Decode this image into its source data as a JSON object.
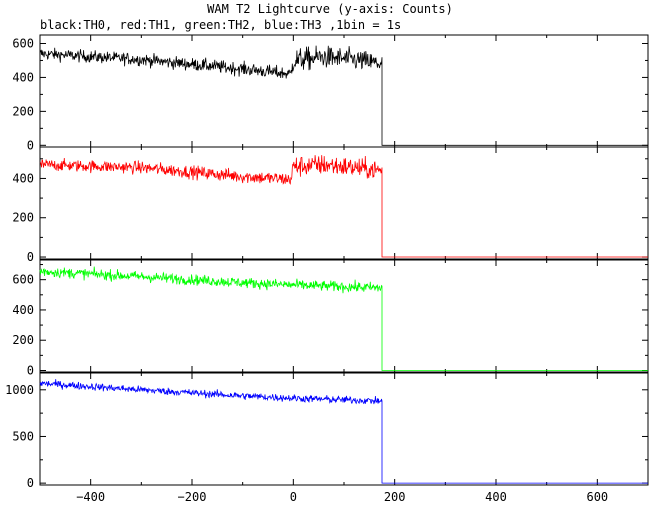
{
  "chart_data": {
    "type": "line",
    "title": "WAM T2 Lightcurve (y-axis: Counts)",
    "subtitle": "black:TH0, red:TH1, green:TH2, blue:TH3 ,1bin = 1s",
    "xlim": [
      -500,
      700
    ],
    "x_ticks": [
      -400,
      -200,
      0,
      200,
      400,
      600
    ],
    "x_tick_labels": [
      "−400",
      "−200",
      "0",
      "200",
      "400",
      "600"
    ],
    "x_step": 1,
    "data_end_x": 175,
    "panels": [
      {
        "color": "#000000",
        "ylim": [
          -10,
          650
        ],
        "y_ticks": [
          0,
          200,
          400,
          600
        ],
        "y_tick_labels": [
          "0",
          "200",
          "400",
          "600"
        ],
        "profile": [
          [
            -500,
            540
          ],
          [
            -300,
            505
          ],
          [
            -100,
            450
          ],
          [
            -5,
            420
          ],
          [
            0,
            500
          ],
          [
            60,
            520
          ],
          [
            120,
            505
          ],
          [
            175,
            480
          ]
        ],
        "noise": [
          [
            -500,
            35
          ],
          [
            -5,
            40
          ],
          [
            0,
            70
          ],
          [
            175,
            60
          ]
        ],
        "after_value": 0
      },
      {
        "color": "#ff0000",
        "ylim": [
          -10,
          560
        ],
        "y_ticks": [
          0,
          200,
          400
        ],
        "y_tick_labels": [
          "0",
          "200",
          "400"
        ],
        "profile": [
          [
            -500,
            470
          ],
          [
            -300,
            455
          ],
          [
            -100,
            410
          ],
          [
            -5,
            395
          ],
          [
            0,
            460
          ],
          [
            60,
            470
          ],
          [
            120,
            455
          ],
          [
            175,
            440
          ]
        ],
        "noise": [
          [
            -500,
            30
          ],
          [
            -5,
            35
          ],
          [
            0,
            55
          ],
          [
            175,
            50
          ]
        ],
        "after_value": 0
      },
      {
        "color": "#00ff00",
        "ylim": [
          -10,
          730
        ],
        "y_ticks": [
          0,
          200,
          400,
          600
        ],
        "y_tick_labels": [
          "0",
          "200",
          "400",
          "600"
        ],
        "profile": [
          [
            -500,
            655
          ],
          [
            -300,
            620
          ],
          [
            -100,
            580
          ],
          [
            0,
            565
          ],
          [
            175,
            545
          ]
        ],
        "noise": [
          [
            -500,
            35
          ],
          [
            175,
            35
          ]
        ],
        "after_value": 0
      },
      {
        "color": "#0000ff",
        "ylim": [
          -20,
          1180
        ],
        "y_ticks": [
          0,
          500,
          1000
        ],
        "y_tick_labels": [
          "0",
          "500",
          "1000"
        ],
        "profile": [
          [
            -500,
            1070
          ],
          [
            -300,
            1000
          ],
          [
            -100,
            935
          ],
          [
            0,
            910
          ],
          [
            175,
            880
          ]
        ],
        "noise": [
          [
            -500,
            40
          ],
          [
            175,
            40
          ]
        ],
        "after_value": 0
      }
    ]
  }
}
